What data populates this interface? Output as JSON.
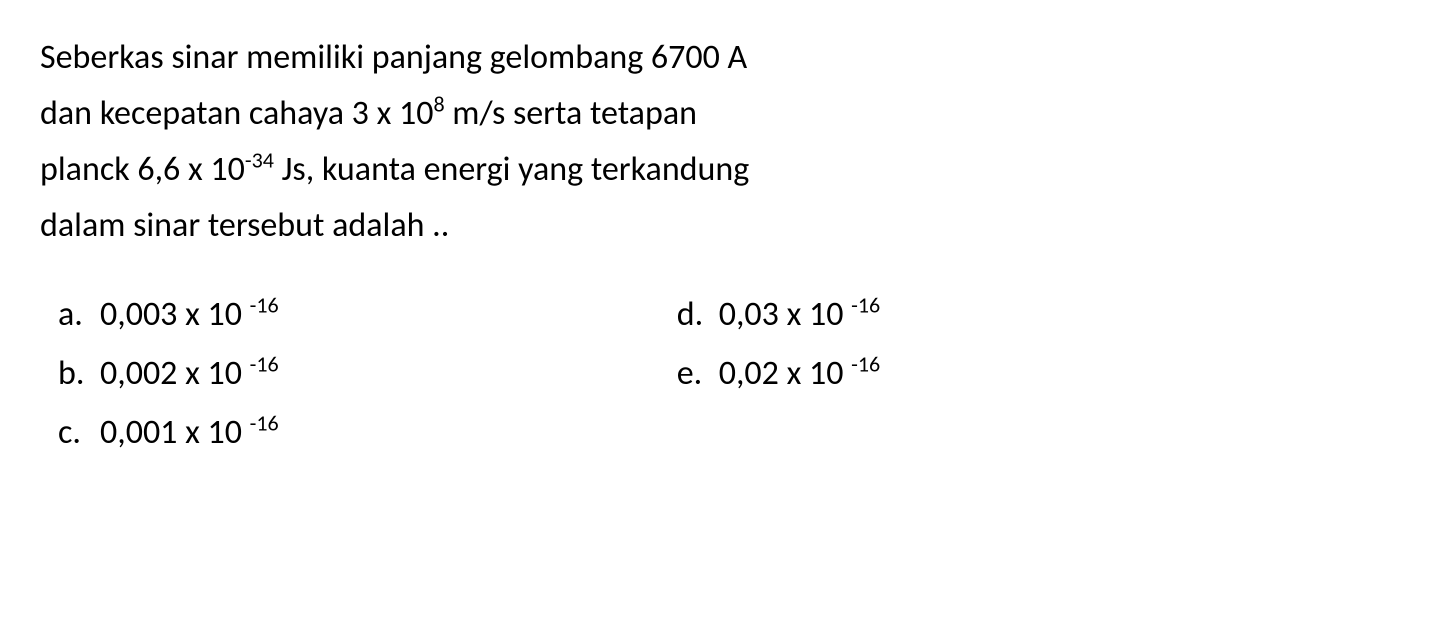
{
  "question": {
    "line1": "Seberkas sinar memiliki panjang gelombang 6700 A",
    "line2_prefix": "dan kecepatan cahaya 3 x 10",
    "line2_exp": "8",
    "line2_suffix": " m/s serta tetapan",
    "line3_prefix": "planck 6,6 x 10",
    "line3_exp": "-34",
    "line3_suffix": " Js, kuanta energi yang terkandung",
    "line4": "dalam sinar tersebut adalah .."
  },
  "options": {
    "a": {
      "letter": "a.",
      "value": "0,003 x 10",
      "exp": "-16"
    },
    "b": {
      "letter": "b.",
      "value": "0,002 x 10",
      "exp": "-16"
    },
    "c": {
      "letter": "c.",
      "value": "0,001 x 10",
      "exp": "-16"
    },
    "d": {
      "letter": "d.",
      "value": "0,03 x 10",
      "exp": "-16"
    },
    "e": {
      "letter": "e.",
      "value": "0,02 x 10",
      "exp": "-16"
    }
  },
  "style": {
    "font_family": "Calibri, Arial, sans-serif",
    "font_size_pt": 34,
    "sup_font_size_pt": 22,
    "text_color": "#000000",
    "background_color": "#ffffff",
    "line_height": 1.65
  }
}
